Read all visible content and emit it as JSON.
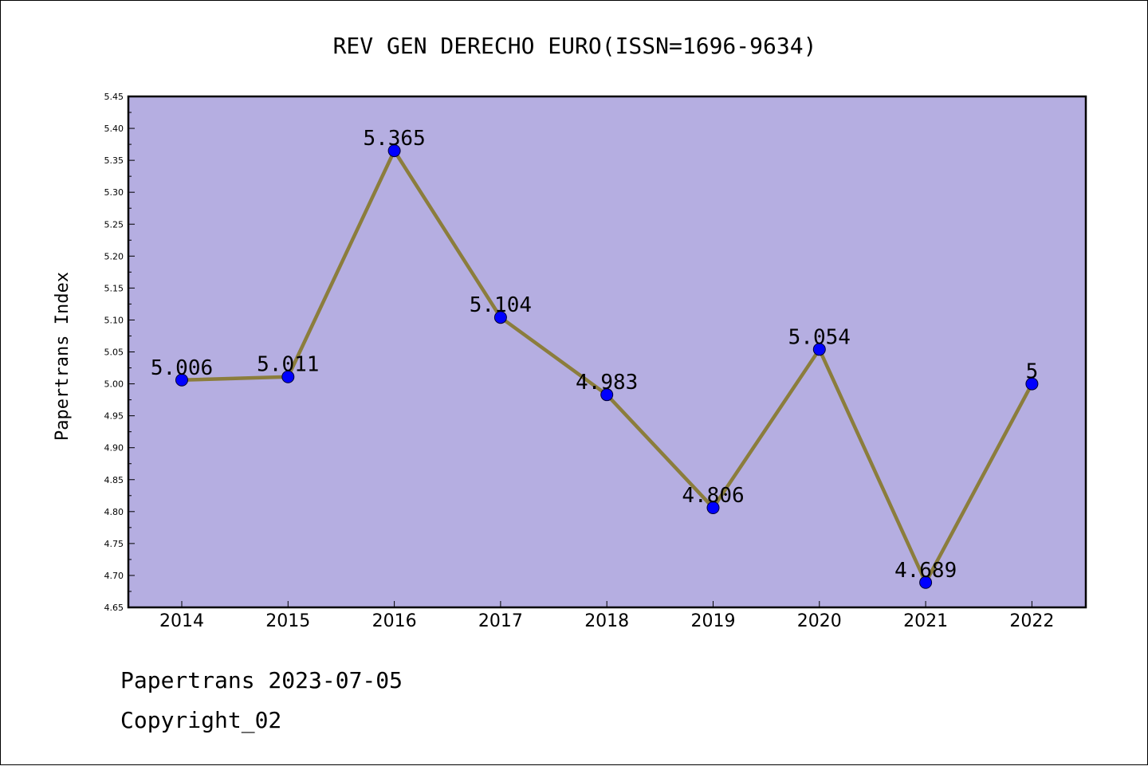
{
  "chart_data": {
    "type": "line",
    "title": "REV GEN DERECHO EURO(ISSN=1696-9634)",
    "xlabel": "",
    "ylabel": "Papertrans Index",
    "categories": [
      "2014",
      "2015",
      "2016",
      "2017",
      "2018",
      "2019",
      "2020",
      "2021",
      "2022"
    ],
    "series": [
      {
        "values": [
          5.006,
          5.011,
          5.365,
          5.104,
          4.983,
          4.806,
          5.054,
          4.689,
          5
        ],
        "labels": [
          "5.006",
          "5.011",
          "5.365",
          "5.104",
          "4.983",
          "4.806",
          "5.054",
          "4.689",
          "5"
        ]
      }
    ],
    "ylim": [
      4.65,
      5.45
    ],
    "yticks": [
      "4.65",
      "4.70",
      "4.75",
      "4.80",
      "4.85",
      "4.90",
      "4.95",
      "5.00",
      "5.05",
      "5.10",
      "5.15",
      "5.20",
      "5.25",
      "5.30",
      "5.35",
      "5.40",
      "5.45"
    ],
    "grid": false,
    "colors": {
      "plot_background": "#b5aee1",
      "line": "#8b7d3c",
      "marker": "#0000ff"
    }
  },
  "footer": {
    "date_line": "Papertrans 2023-07-05",
    "copyright": "Copyright_02"
  }
}
